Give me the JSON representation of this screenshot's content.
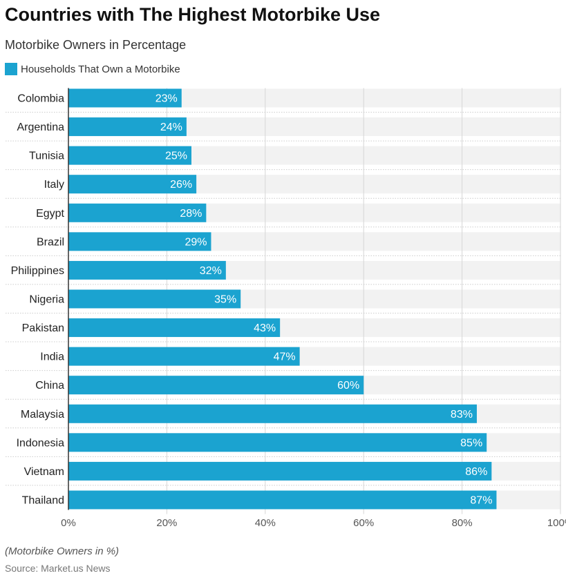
{
  "chart_data": {
    "type": "bar",
    "orientation": "horizontal",
    "title": "Countries with The Highest Motorbike Use",
    "subtitle": "Motorbike Owners in Percentage",
    "categories": [
      "Colombia",
      "Argentina",
      "Tunisia",
      "Italy",
      "Egypt",
      "Brazil",
      "Philippines",
      "Nigeria",
      "Pakistan",
      "India",
      "China",
      "Malaysia",
      "Indonesia",
      "Vietnam",
      "Thailand"
    ],
    "series": [
      {
        "name": "Households That Own a Motorbike",
        "values": [
          23,
          24,
          25,
          26,
          28,
          29,
          32,
          35,
          43,
          47,
          60,
          83,
          85,
          86,
          87
        ],
        "color": "#1ba3d0"
      }
    ],
    "xlim": [
      0,
      100
    ],
    "xticks": [
      "0%",
      "20%",
      "40%",
      "60%",
      "80%",
      "100%"
    ],
    "data_labels": [
      "23%",
      "24%",
      "25%",
      "26%",
      "28%",
      "29%",
      "32%",
      "35%",
      "43%",
      "47%",
      "60%",
      "83%",
      "85%",
      "86%",
      "87%"
    ],
    "grid": true,
    "legend_position": "top-left",
    "note": "(Motorbike Owners in %)",
    "source": "Source: Market.us News"
  }
}
